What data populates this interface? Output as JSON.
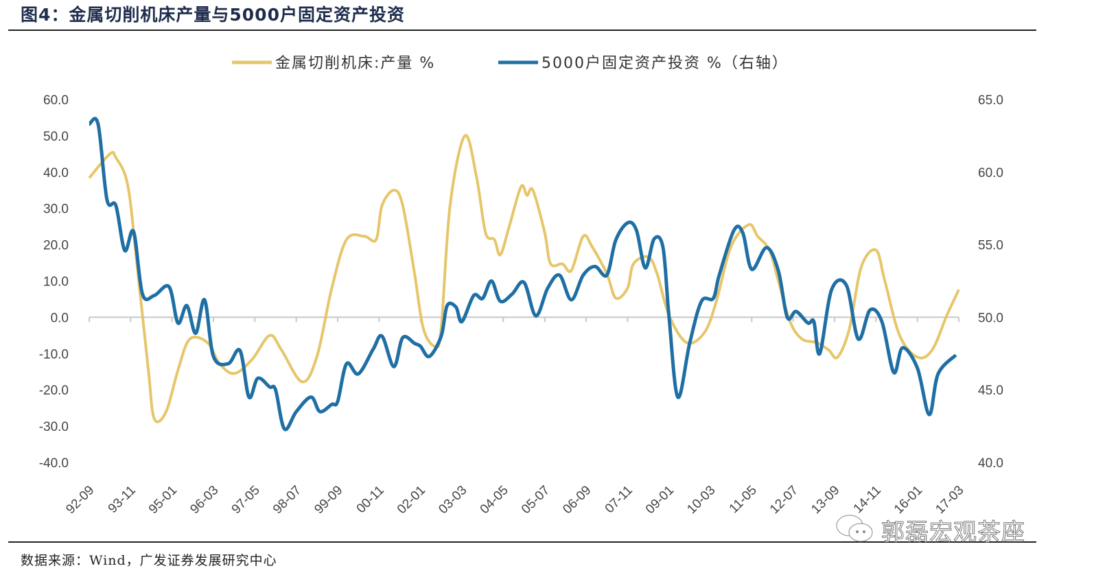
{
  "title": "图4：金属切削机床产量与5000户固定资产投资",
  "source": "数据来源：Wind，广发证券发展研究中心",
  "watermark": "郭磊宏观茶座",
  "chart_data": {
    "type": "line",
    "title": "",
    "legend_position": "top",
    "grid": false,
    "x_ticks": [
      "92-09",
      "93-11",
      "95-01",
      "96-03",
      "97-05",
      "98-07",
      "99-09",
      "00-11",
      "02-01",
      "03-03",
      "04-05",
      "05-07",
      "06-09",
      "07-11",
      "09-01",
      "10-03",
      "11-05",
      "12-07",
      "13-09",
      "14-11",
      "16-01",
      "17-03"
    ],
    "xlim": [
      "1992-09",
      "2017-03"
    ],
    "y_left": {
      "ylim": [
        -40,
        60
      ],
      "ticks": [
        "60.0",
        "50.0",
        "40.0",
        "30.0",
        "20.0",
        "10.0",
        "0.0",
        "-10.0",
        "-20.0",
        "-30.0",
        "-40.0"
      ]
    },
    "y_right": {
      "ylim": [
        40,
        65
      ],
      "ticks": [
        "65.0",
        "60.0",
        "55.0",
        "50.0",
        "45.0",
        "40.0"
      ]
    },
    "series": [
      {
        "name": "金属切削机床:产量 %",
        "axis": "left",
        "color": "#E6C66A",
        "points": [
          [
            "1992-09",
            38.4
          ],
          [
            "1993-04",
            45
          ],
          [
            "1993-06",
            44
          ],
          [
            "1993-10",
            36.5
          ],
          [
            "1994-01",
            15.7
          ],
          [
            "1994-05",
            -14.6
          ],
          [
            "1994-07",
            -28
          ],
          [
            "1994-11",
            -26
          ],
          [
            "1995-03",
            -14.6
          ],
          [
            "1995-07",
            -6
          ],
          [
            "1996-01",
            -7
          ],
          [
            "1996-05",
            -12.7
          ],
          [
            "1996-10",
            -15.5
          ],
          [
            "1997-04",
            -11.7
          ],
          [
            "1997-10",
            -5
          ],
          [
            "1998-02",
            -9
          ],
          [
            "1998-09",
            -17.8
          ],
          [
            "1999-02",
            -10.8
          ],
          [
            "1999-07",
            8
          ],
          [
            "1999-12",
            21.4
          ],
          [
            "2000-06",
            22.3
          ],
          [
            "2000-10",
            21.4
          ],
          [
            "2000-12",
            30.8
          ],
          [
            "2001-04",
            35
          ],
          [
            "2001-07",
            30.8
          ],
          [
            "2001-11",
            12
          ],
          [
            "2002-02",
            -3.2
          ],
          [
            "2002-06",
            -8
          ],
          [
            "2002-08",
            -3
          ],
          [
            "2002-11",
            30.8
          ],
          [
            "2003-04",
            50
          ],
          [
            "2003-08",
            38.4
          ],
          [
            "2003-11",
            23.3
          ],
          [
            "2004-02",
            21.4
          ],
          [
            "2004-04",
            17.2
          ],
          [
            "2004-07",
            25
          ],
          [
            "2004-11",
            36
          ],
          [
            "2005-01",
            33.6
          ],
          [
            "2005-03",
            35
          ],
          [
            "2005-07",
            23.3
          ],
          [
            "2005-09",
            14.7
          ],
          [
            "2006-01",
            14.7
          ],
          [
            "2006-04",
            12.9
          ],
          [
            "2006-08",
            22.3
          ],
          [
            "2006-11",
            19.5
          ],
          [
            "2007-04",
            12
          ],
          [
            "2007-07",
            5.3
          ],
          [
            "2007-11",
            8
          ],
          [
            "2008-01",
            14.7
          ],
          [
            "2008-06",
            16.6
          ],
          [
            "2008-09",
            12
          ],
          [
            "2009-01",
            0.6
          ],
          [
            "2009-07",
            -7
          ],
          [
            "2010-01",
            -4.2
          ],
          [
            "2010-05",
            4.3
          ],
          [
            "2010-10",
            19.5
          ],
          [
            "2011-04",
            25.5
          ],
          [
            "2011-07",
            22.3
          ],
          [
            "2011-11",
            18.5
          ],
          [
            "2012-02",
            10
          ],
          [
            "2012-06",
            -1.3
          ],
          [
            "2012-10",
            -6
          ],
          [
            "2013-03",
            -7
          ],
          [
            "2013-07",
            -9
          ],
          [
            "2013-10",
            -11
          ],
          [
            "2014-02",
            -3.2
          ],
          [
            "2014-06",
            13.8
          ],
          [
            "2014-11",
            18.5
          ],
          [
            "2015-02",
            10
          ],
          [
            "2015-07",
            -5
          ],
          [
            "2016-01",
            -11
          ],
          [
            "2016-06",
            -9
          ],
          [
            "2016-11",
            0.6
          ],
          [
            "2017-03",
            7.6
          ]
        ]
      },
      {
        "name": "5000户固定资产投资 %（右轴）",
        "axis": "right",
        "color": "#1F6FA5",
        "points": [
          [
            "1992-09",
            63.3
          ],
          [
            "1992-12",
            63.3
          ],
          [
            "1993-03",
            58.1
          ],
          [
            "1993-06",
            57.7
          ],
          [
            "1993-09",
            54.6
          ],
          [
            "1993-12",
            55.9
          ],
          [
            "1994-03",
            51.6
          ],
          [
            "1994-07",
            51.5
          ],
          [
            "1994-12",
            52.1
          ],
          [
            "1995-03",
            49.6
          ],
          [
            "1995-06",
            50.8
          ],
          [
            "1995-09",
            48.9
          ],
          [
            "1995-12",
            51.2
          ],
          [
            "1996-03",
            47.3
          ],
          [
            "1996-08",
            46.8
          ],
          [
            "1996-12",
            47.7
          ],
          [
            "1997-03",
            44.5
          ],
          [
            "1997-06",
            45.8
          ],
          [
            "1997-10",
            45.2
          ],
          [
            "1997-12",
            45
          ],
          [
            "1998-03",
            42.3
          ],
          [
            "1998-07",
            43.5
          ],
          [
            "1998-12",
            44.5
          ],
          [
            "1999-03",
            43.5
          ],
          [
            "1999-07",
            44
          ],
          [
            "1999-09",
            44.2
          ],
          [
            "1999-12",
            46.8
          ],
          [
            "2000-04",
            46.1
          ],
          [
            "2000-09",
            47.8
          ],
          [
            "2000-12",
            48.7
          ],
          [
            "2001-04",
            46.6
          ],
          [
            "2001-07",
            48.6
          ],
          [
            "2001-11",
            48.2
          ],
          [
            "2002-01",
            48
          ],
          [
            "2002-04",
            47.3
          ],
          [
            "2002-08",
            48.7
          ],
          [
            "2002-10",
            50.8
          ],
          [
            "2003-01",
            50.7
          ],
          [
            "2003-03",
            49.7
          ],
          [
            "2003-07",
            51.5
          ],
          [
            "2003-10",
            51.3
          ],
          [
            "2004-01",
            52.5
          ],
          [
            "2004-04",
            51.1
          ],
          [
            "2004-08",
            51.6
          ],
          [
            "2004-12",
            52.4
          ],
          [
            "2005-04",
            50.1
          ],
          [
            "2005-08",
            52
          ],
          [
            "2005-12",
            52.9
          ],
          [
            "2006-04",
            51.2
          ],
          [
            "2006-08",
            52.9
          ],
          [
            "2006-12",
            53.5
          ],
          [
            "2007-04",
            52.9
          ],
          [
            "2007-07",
            55.3
          ],
          [
            "2007-11",
            56.5
          ],
          [
            "2008-02",
            56
          ],
          [
            "2008-05",
            53.4
          ],
          [
            "2008-08",
            55.4
          ],
          [
            "2008-11",
            54.8
          ],
          [
            "2009-01",
            50.1
          ],
          [
            "2009-04",
            44.5
          ],
          [
            "2009-08",
            48.2
          ],
          [
            "2009-12",
            51.1
          ],
          [
            "2010-04",
            51.3
          ],
          [
            "2010-06",
            52.9
          ],
          [
            "2010-11",
            56
          ],
          [
            "2011-02",
            55.8
          ],
          [
            "2011-05",
            53.3
          ],
          [
            "2011-10",
            54.8
          ],
          [
            "2012-02",
            53.2
          ],
          [
            "2012-05",
            50
          ],
          [
            "2012-08",
            50.4
          ],
          [
            "2012-12",
            49.6
          ],
          [
            "2013-02",
            49.7
          ],
          [
            "2013-04",
            47.5
          ],
          [
            "2013-08",
            51.9
          ],
          [
            "2014-01",
            52.2
          ],
          [
            "2014-05",
            48.5
          ],
          [
            "2014-09",
            50.5
          ],
          [
            "2015-01",
            49.7
          ],
          [
            "2015-05",
            46.2
          ],
          [
            "2015-08",
            47.9
          ],
          [
            "2016-01",
            46.5
          ],
          [
            "2016-05",
            43.3
          ],
          [
            "2016-08",
            46.1
          ],
          [
            "2017-02",
            47.4
          ]
        ]
      }
    ]
  }
}
